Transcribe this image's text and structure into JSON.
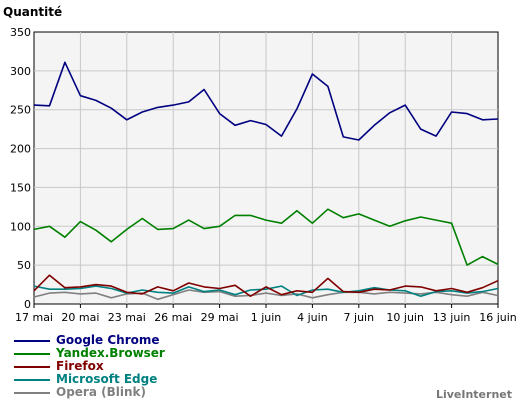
{
  "chart_data": {
    "type": "line",
    "ylabel": "Quantité",
    "ylim": [
      0,
      350
    ],
    "yticks": [
      0,
      50,
      100,
      150,
      200,
      250,
      300,
      350
    ],
    "xtick_labels": [
      "17 mai",
      "20 mai",
      "23 mai",
      "26 mai",
      "29 mai",
      "1 juin",
      "4 juin",
      "7 juin",
      "10 juin",
      "13 juin",
      "16 juin"
    ],
    "grid": true,
    "x": [
      "17 mai",
      "18 mai",
      "19 mai",
      "20 mai",
      "21 mai",
      "22 mai",
      "23 mai",
      "24 mai",
      "25 mai",
      "26 mai",
      "27 mai",
      "28 mai",
      "29 mai",
      "30 mai",
      "31 mai",
      "1 juin",
      "2 juin",
      "3 juin",
      "4 juin",
      "5 juin",
      "6 juin",
      "7 juin",
      "8 juin",
      "9 juin",
      "10 juin",
      "11 juin",
      "12 juin",
      "13 juin",
      "14 juin",
      "15 juin",
      "16 juin"
    ],
    "series": [
      {
        "name": "Google Chrome",
        "color": "#000080",
        "values": [
          256,
          255,
          311,
          268,
          262,
          252,
          237,
          247,
          253,
          256,
          260,
          276,
          245,
          230,
          236,
          231,
          216,
          251,
          296,
          280,
          215,
          211,
          230,
          246,
          256,
          225,
          216,
          247,
          245,
          237,
          238
        ]
      },
      {
        "name": "Yandex.Browser",
        "color": "#008000",
        "values": [
          96,
          100,
          86,
          106,
          95,
          80,
          96,
          110,
          96,
          97,
          108,
          97,
          100,
          114,
          114,
          108,
          104,
          120,
          104,
          122,
          111,
          116,
          108,
          100,
          107,
          112,
          108,
          104,
          50,
          61,
          51
        ]
      },
      {
        "name": "Firefox",
        "color": "#800000",
        "values": [
          17,
          37,
          21,
          22,
          25,
          23,
          15,
          13,
          22,
          17,
          27,
          22,
          20,
          24,
          10,
          22,
          12,
          17,
          15,
          33,
          16,
          15,
          19,
          18,
          23,
          22,
          17,
          20,
          15,
          21,
          30
        ]
      },
      {
        "name": "Microsoft Edge",
        "color": "#008080",
        "values": [
          23,
          19,
          19,
          20,
          23,
          20,
          14,
          18,
          15,
          14,
          22,
          16,
          18,
          12,
          18,
          19,
          23,
          11,
          18,
          19,
          15,
          17,
          21,
          18,
          17,
          10,
          16,
          17,
          14,
          16,
          20
        ]
      },
      {
        "name": "Opera (Blink)",
        "color": "#808080",
        "values": [
          9,
          14,
          15,
          13,
          14,
          8,
          13,
          14,
          6,
          12,
          18,
          15,
          16,
          10,
          11,
          14,
          11,
          13,
          8,
          12,
          15,
          15,
          13,
          15,
          14,
          13,
          15,
          12,
          10,
          15,
          11
        ]
      }
    ]
  },
  "watermark": "LiveInternet"
}
